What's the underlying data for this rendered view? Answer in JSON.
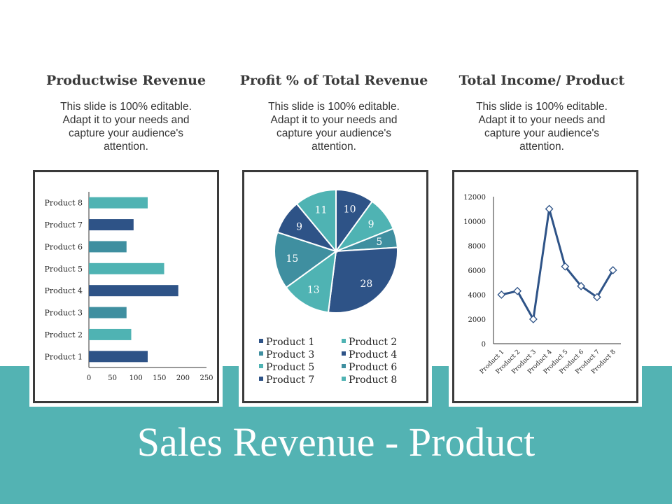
{
  "colors": {
    "teal": "#4fb3b3",
    "teal_mid": "#3f8fa0",
    "navy": "#2e5387",
    "band": "#53b3b3",
    "panel_border": "#3a3a3a"
  },
  "columns": [
    {
      "title": "Productwise Revenue",
      "desc": "This slide is 100% editable. Adapt it to your needs and capture your audience's attention."
    },
    {
      "title": "Profit % of Total Revenue",
      "desc": "This slide is 100% editable. Adapt it to your needs and capture your audience's attention."
    },
    {
      "title": "Total Income/ Product",
      "desc": "This slide is 100% editable. Adapt it to your needs and capture your audience's attention."
    }
  ],
  "footer": {
    "title": "Sales Revenue - Product"
  },
  "chart_data": [
    {
      "type": "bar",
      "orientation": "horizontal",
      "categories": [
        "Product 1",
        "Product 2",
        "Product 3",
        "Product 4",
        "Product 5",
        "Product 6",
        "Product 7",
        "Product 8"
      ],
      "values": [
        125,
        90,
        80,
        190,
        160,
        80,
        95,
        125
      ],
      "bar_colors": [
        "#2e5387",
        "#4fb3b3",
        "#3f8fa0",
        "#2e5387",
        "#4fb3b3",
        "#3f8fa0",
        "#2e5387",
        "#4fb3b3"
      ],
      "xlim": [
        0,
        250
      ],
      "xticks": [
        0,
        50,
        100,
        150,
        200,
        250
      ]
    },
    {
      "type": "pie",
      "labels": [
        "Product 1",
        "Product 2",
        "Product 3",
        "Product 4",
        "Product 5",
        "Product 6",
        "Product 7",
        "Product 8"
      ],
      "values": [
        10,
        9,
        5,
        28,
        13,
        15,
        9,
        11
      ],
      "colors": [
        "#2e5387",
        "#4fb3b3",
        "#3f8fa0",
        "#2e5387",
        "#4fb3b3",
        "#3f8fa0",
        "#2e5387",
        "#4fb3b3"
      ],
      "legend": "bottom"
    },
    {
      "type": "line",
      "categories": [
        "Product 1",
        "Product 2",
        "Product 3",
        "Product 4",
        "Product 5",
        "Product 6",
        "Product 7",
        "Product 8"
      ],
      "values": [
        4000,
        4300,
        2000,
        11000,
        6300,
        4700,
        3800,
        6000
      ],
      "ylim": [
        0,
        12000
      ],
      "yticks": [
        0,
        2000,
        4000,
        6000,
        8000,
        10000,
        12000
      ],
      "line_color": "#2e5387"
    }
  ]
}
